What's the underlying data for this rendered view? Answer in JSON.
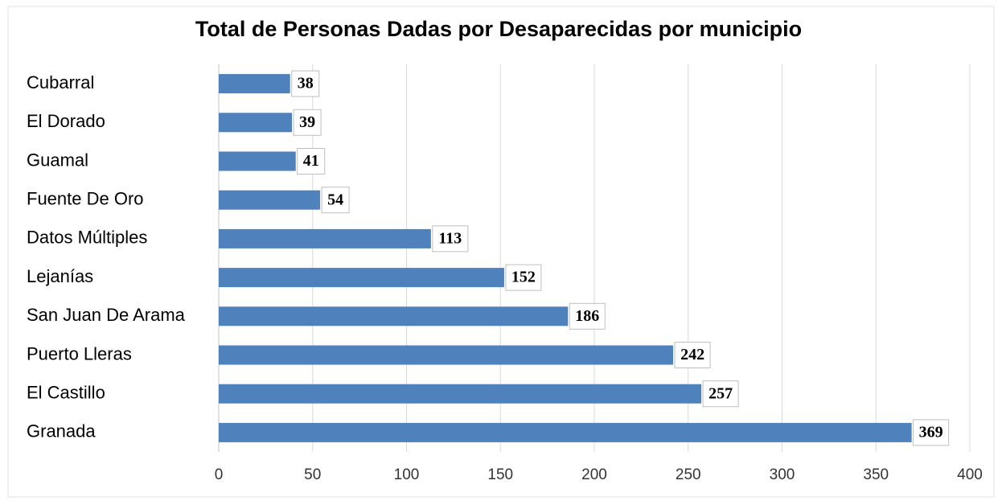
{
  "chart_data": {
    "type": "bar",
    "orientation": "horizontal",
    "title": "Total de Personas Dadas por Desaparecidas por municipio",
    "categories": [
      "Cubarral",
      "El Dorado",
      "Guamal",
      "Fuente De Oro",
      "Datos Múltiples",
      "Lejanías",
      "San Juan De Arama",
      "Puerto Lleras",
      "El Castillo",
      "Granada"
    ],
    "values": [
      38,
      39,
      41,
      54,
      113,
      152,
      186,
      242,
      257,
      369
    ],
    "color": "#4f81bd",
    "xlim": [
      0,
      400
    ],
    "xticks": [
      0,
      50,
      100,
      150,
      200,
      250,
      300,
      350,
      400
    ],
    "grid": true
  }
}
